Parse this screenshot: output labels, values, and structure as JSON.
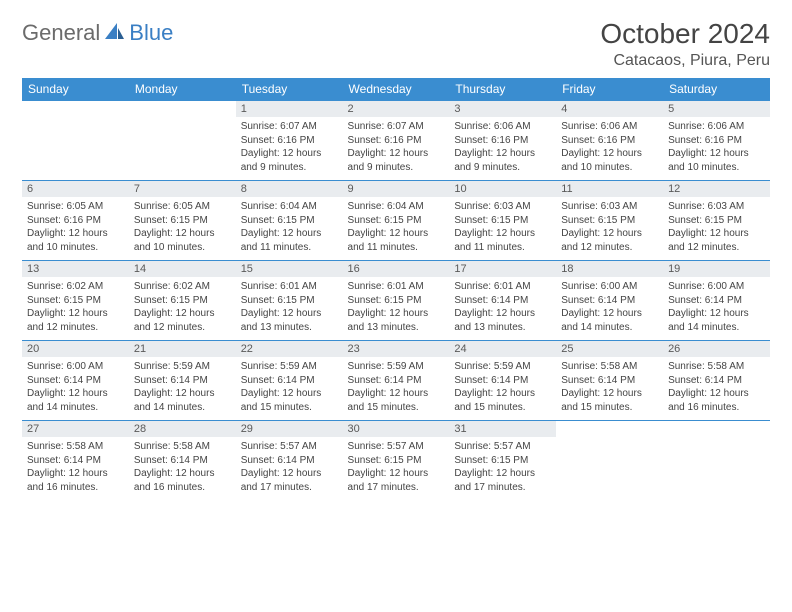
{
  "brand": {
    "word1": "General",
    "word2": "Blue"
  },
  "title": "October 2024",
  "location": "Catacaos, Piura, Peru",
  "colors": {
    "header_bg": "#3a8dd0",
    "header_fg": "#ffffff",
    "daynum_bg": "#e9ecef",
    "rule": "#3a8dd0",
    "text": "#444444",
    "brand_gray": "#6b6b6b",
    "brand_blue": "#3a7fc4"
  },
  "weekdays": [
    "Sunday",
    "Monday",
    "Tuesday",
    "Wednesday",
    "Thursday",
    "Friday",
    "Saturday"
  ],
  "weeks": [
    [
      null,
      null,
      {
        "n": "1",
        "sr": "6:07 AM",
        "ss": "6:16 PM",
        "dl": "12 hours and 9 minutes."
      },
      {
        "n": "2",
        "sr": "6:07 AM",
        "ss": "6:16 PM",
        "dl": "12 hours and 9 minutes."
      },
      {
        "n": "3",
        "sr": "6:06 AM",
        "ss": "6:16 PM",
        "dl": "12 hours and 9 minutes."
      },
      {
        "n": "4",
        "sr": "6:06 AM",
        "ss": "6:16 PM",
        "dl": "12 hours and 10 minutes."
      },
      {
        "n": "5",
        "sr": "6:06 AM",
        "ss": "6:16 PM",
        "dl": "12 hours and 10 minutes."
      }
    ],
    [
      {
        "n": "6",
        "sr": "6:05 AM",
        "ss": "6:16 PM",
        "dl": "12 hours and 10 minutes."
      },
      {
        "n": "7",
        "sr": "6:05 AM",
        "ss": "6:15 PM",
        "dl": "12 hours and 10 minutes."
      },
      {
        "n": "8",
        "sr": "6:04 AM",
        "ss": "6:15 PM",
        "dl": "12 hours and 11 minutes."
      },
      {
        "n": "9",
        "sr": "6:04 AM",
        "ss": "6:15 PM",
        "dl": "12 hours and 11 minutes."
      },
      {
        "n": "10",
        "sr": "6:03 AM",
        "ss": "6:15 PM",
        "dl": "12 hours and 11 minutes."
      },
      {
        "n": "11",
        "sr": "6:03 AM",
        "ss": "6:15 PM",
        "dl": "12 hours and 12 minutes."
      },
      {
        "n": "12",
        "sr": "6:03 AM",
        "ss": "6:15 PM",
        "dl": "12 hours and 12 minutes."
      }
    ],
    [
      {
        "n": "13",
        "sr": "6:02 AM",
        "ss": "6:15 PM",
        "dl": "12 hours and 12 minutes."
      },
      {
        "n": "14",
        "sr": "6:02 AM",
        "ss": "6:15 PM",
        "dl": "12 hours and 12 minutes."
      },
      {
        "n": "15",
        "sr": "6:01 AM",
        "ss": "6:15 PM",
        "dl": "12 hours and 13 minutes."
      },
      {
        "n": "16",
        "sr": "6:01 AM",
        "ss": "6:15 PM",
        "dl": "12 hours and 13 minutes."
      },
      {
        "n": "17",
        "sr": "6:01 AM",
        "ss": "6:14 PM",
        "dl": "12 hours and 13 minutes."
      },
      {
        "n": "18",
        "sr": "6:00 AM",
        "ss": "6:14 PM",
        "dl": "12 hours and 14 minutes."
      },
      {
        "n": "19",
        "sr": "6:00 AM",
        "ss": "6:14 PM",
        "dl": "12 hours and 14 minutes."
      }
    ],
    [
      {
        "n": "20",
        "sr": "6:00 AM",
        "ss": "6:14 PM",
        "dl": "12 hours and 14 minutes."
      },
      {
        "n": "21",
        "sr": "5:59 AM",
        "ss": "6:14 PM",
        "dl": "12 hours and 14 minutes."
      },
      {
        "n": "22",
        "sr": "5:59 AM",
        "ss": "6:14 PM",
        "dl": "12 hours and 15 minutes."
      },
      {
        "n": "23",
        "sr": "5:59 AM",
        "ss": "6:14 PM",
        "dl": "12 hours and 15 minutes."
      },
      {
        "n": "24",
        "sr": "5:59 AM",
        "ss": "6:14 PM",
        "dl": "12 hours and 15 minutes."
      },
      {
        "n": "25",
        "sr": "5:58 AM",
        "ss": "6:14 PM",
        "dl": "12 hours and 15 minutes."
      },
      {
        "n": "26",
        "sr": "5:58 AM",
        "ss": "6:14 PM",
        "dl": "12 hours and 16 minutes."
      }
    ],
    [
      {
        "n": "27",
        "sr": "5:58 AM",
        "ss": "6:14 PM",
        "dl": "12 hours and 16 minutes."
      },
      {
        "n": "28",
        "sr": "5:58 AM",
        "ss": "6:14 PM",
        "dl": "12 hours and 16 minutes."
      },
      {
        "n": "29",
        "sr": "5:57 AM",
        "ss": "6:14 PM",
        "dl": "12 hours and 17 minutes."
      },
      {
        "n": "30",
        "sr": "5:57 AM",
        "ss": "6:15 PM",
        "dl": "12 hours and 17 minutes."
      },
      {
        "n": "31",
        "sr": "5:57 AM",
        "ss": "6:15 PM",
        "dl": "12 hours and 17 minutes."
      },
      null,
      null
    ]
  ],
  "labels": {
    "sunrise": "Sunrise:",
    "sunset": "Sunset:",
    "daylight": "Daylight:"
  }
}
